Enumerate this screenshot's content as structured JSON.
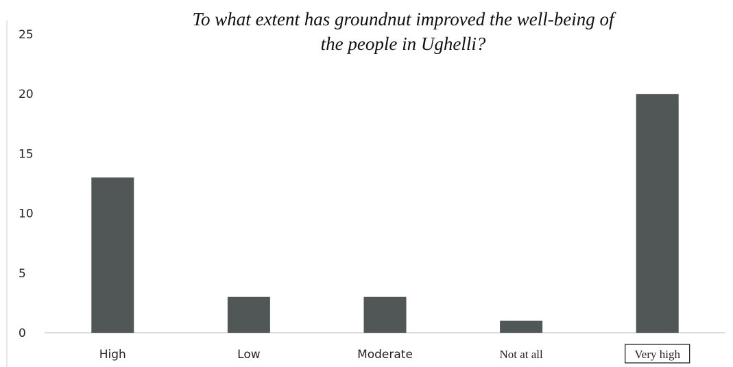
{
  "chart_data": {
    "type": "bar",
    "title_lines": [
      "To what extent has groundnut improved the well-being of",
      "the people in Ughelli?"
    ],
    "categories": [
      "High",
      "Low",
      "Moderate",
      "Not at all",
      "Very high"
    ],
    "values": [
      13,
      3,
      3,
      1,
      20
    ],
    "ylim": [
      0,
      25
    ],
    "yticks": [
      0,
      5,
      10,
      15,
      20,
      25
    ],
    "xlabel": "",
    "ylabel": "",
    "grid": false,
    "legend": "none",
    "bar_color": "#515756",
    "axis_color": "#bbbbbb"
  }
}
